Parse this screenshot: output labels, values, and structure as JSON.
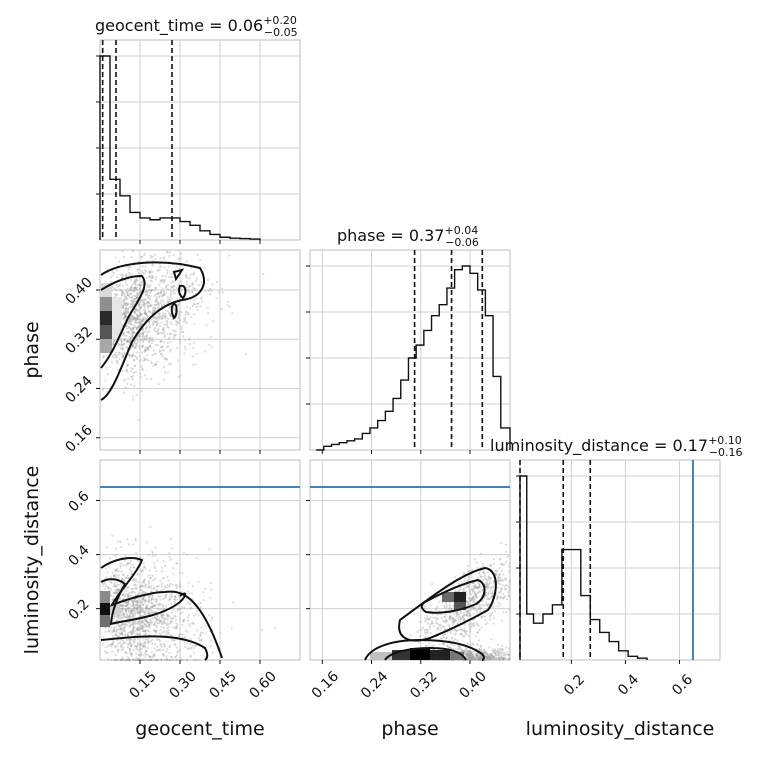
{
  "chart_data": {
    "type": "corner",
    "parameters": [
      "geocent_time",
      "phase",
      "luminosity_distance"
    ],
    "axis_labels": {
      "x": [
        "geocent_time",
        "phase",
        "luminosity_distance"
      ],
      "y": [
        "phase",
        "luminosity_distance"
      ]
    },
    "titles": [
      {
        "prefix": "geocent_time = 0.06",
        "sup": "+0.20",
        "sub": "−0.05"
      },
      {
        "prefix": "phase = 0.37",
        "sup": "+0.04",
        "sub": "−0.06"
      },
      {
        "prefix": "luminosity_distance = 0.17",
        "sup": "+0.10",
        "sub": "−0.16"
      }
    ],
    "ranges": {
      "geocent_time": [
        0.0,
        0.75
      ],
      "phase": [
        0.14,
        0.465
      ],
      "luminosity_distance": [
        0.01,
        0.75
      ]
    },
    "ticks": {
      "geocent_time": [
        0.15,
        0.3,
        0.45,
        0.6
      ],
      "phase": [
        0.16,
        0.24,
        0.32,
        0.4
      ],
      "luminosity_distance": [
        0.2,
        0.4,
        0.6
      ]
    },
    "tick_labels": {
      "geocent_time": [
        "0.15",
        "0.30",
        "0.45",
        "0.60"
      ],
      "phase": [
        "0.16",
        "0.24",
        "0.32",
        "0.40"
      ],
      "luminosity_distance": [
        "0.2",
        "0.4",
        "0.6"
      ]
    },
    "quantiles": {
      "geocent_time": [
        0.01,
        0.06,
        0.27
      ],
      "phase": [
        0.31,
        0.37,
        0.42
      ],
      "luminosity_distance": [
        0.01,
        0.17,
        0.27
      ]
    },
    "truth": {
      "luminosity_distance": 0.65
    },
    "histograms": {
      "geocent_time": {
        "edges": [
          0.0,
          0.0375,
          0.075,
          0.1125,
          0.15,
          0.1875,
          0.225,
          0.2625,
          0.3,
          0.3375,
          0.375,
          0.4125,
          0.45,
          0.4875,
          0.525,
          0.5625,
          0.6
        ],
        "counts": [
          1.0,
          0.33,
          0.24,
          0.15,
          0.12,
          0.11,
          0.12,
          0.12,
          0.1,
          0.08,
          0.05,
          0.03,
          0.015,
          0.01,
          0.008,
          0.005
        ]
      },
      "phase": {
        "edges": [
          0.15,
          0.1625,
          0.175,
          0.1875,
          0.2,
          0.2125,
          0.225,
          0.2375,
          0.25,
          0.2625,
          0.275,
          0.2875,
          0.3,
          0.3125,
          0.325,
          0.3375,
          0.35,
          0.3625,
          0.375,
          0.3875,
          0.4,
          0.4125,
          0.425,
          0.4375,
          0.45,
          0.465
        ],
        "counts": [
          0.0,
          0.02,
          0.03,
          0.04,
          0.05,
          0.06,
          0.09,
          0.12,
          0.16,
          0.21,
          0.28,
          0.38,
          0.5,
          0.57,
          0.65,
          0.73,
          0.79,
          0.88,
          0.98,
          1.0,
          0.96,
          0.87,
          0.73,
          0.4,
          0.12
        ]
      },
      "luminosity_distance": {
        "edges": [
          0.01,
          0.035,
          0.06,
          0.095,
          0.13,
          0.165,
          0.2,
          0.235,
          0.27,
          0.305,
          0.34,
          0.375,
          0.41,
          0.445,
          0.48
        ],
        "counts": [
          1.0,
          0.25,
          0.2,
          0.25,
          0.3,
          0.6,
          0.6,
          0.35,
          0.22,
          0.15,
          0.1,
          0.05,
          0.02,
          0.01
        ]
      }
    },
    "grid": true
  }
}
